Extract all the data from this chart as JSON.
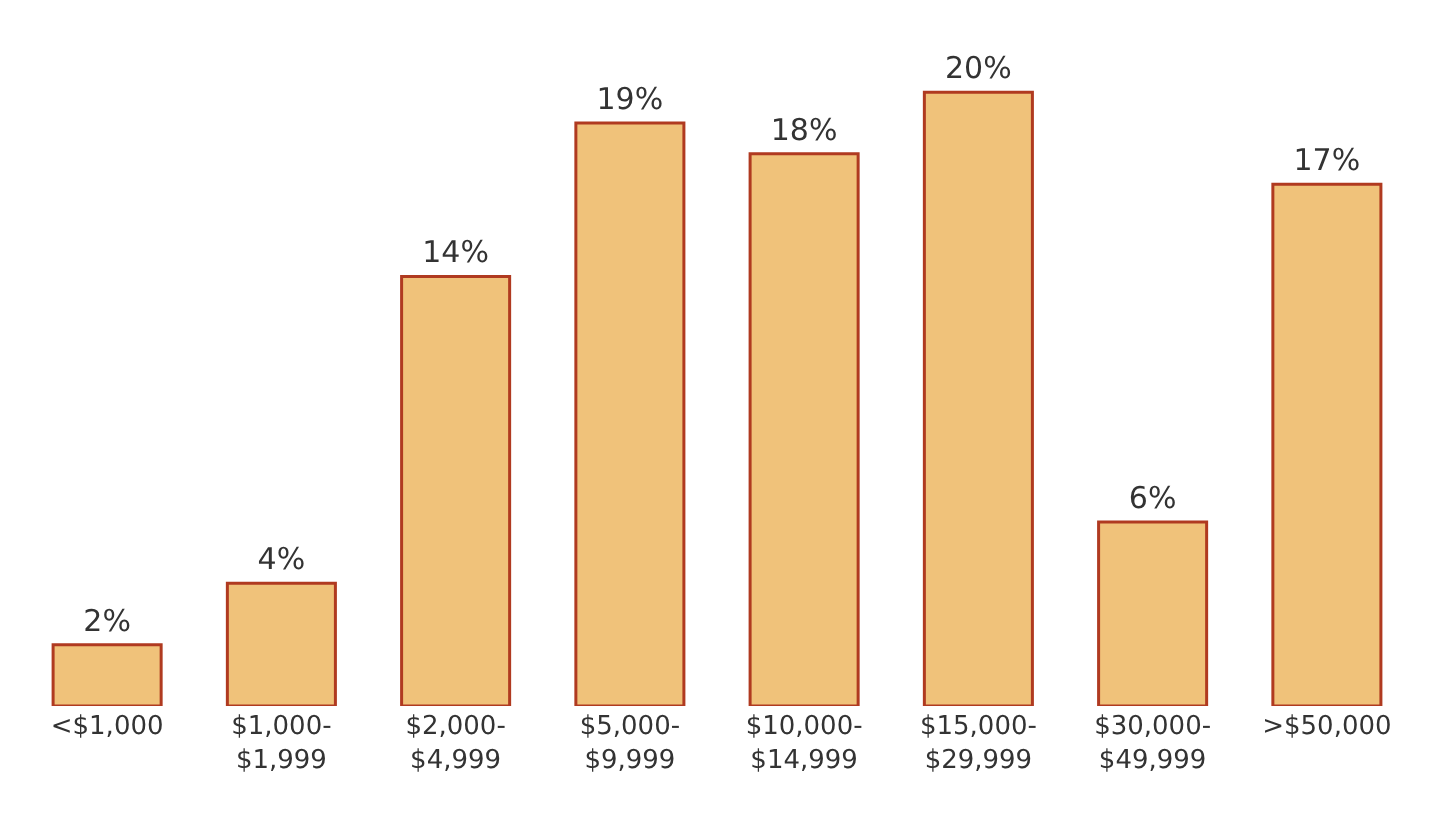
{
  "chart_data": {
    "type": "bar",
    "categories": [
      "<$1,000",
      "$1,000-\n$1,999",
      "$2,000-\n$4,999",
      "$5,000-\n$9,999",
      "$10,000-\n$14,999",
      "$15,000-\n$29,999",
      "$30,000-\n$49,999",
      ">$50,000"
    ],
    "values": [
      2,
      4,
      14,
      19,
      18,
      20,
      6,
      17
    ],
    "value_labels": [
      "2%",
      "4%",
      "14%",
      "19%",
      "18%",
      "20%",
      "6%",
      "17%"
    ],
    "color": "#f0c27a",
    "grid": false,
    "legend": false
  }
}
